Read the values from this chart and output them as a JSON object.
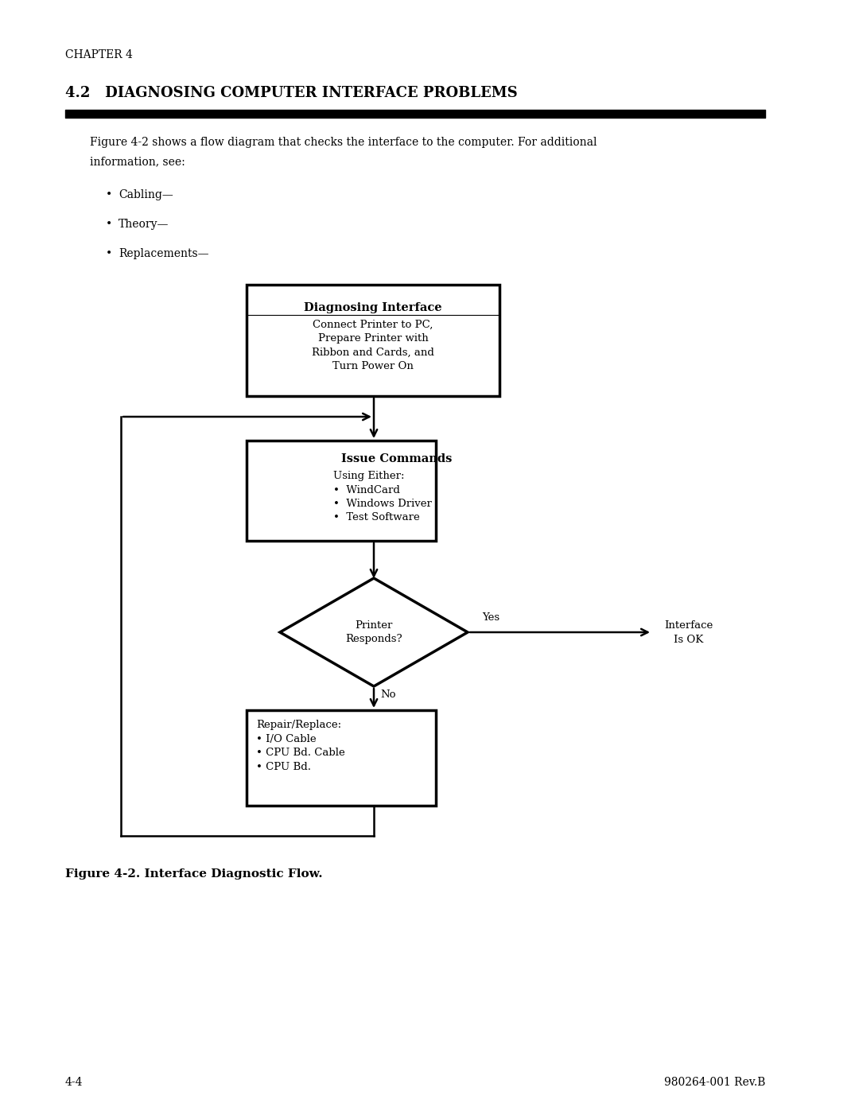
{
  "page_bg": "#ffffff",
  "chapter_text": "CHAPTER 4",
  "section_title": "4.2   DIAGNOSING COMPUTER INTERFACE PROBLEMS",
  "body_text_1": "Figure 4-2 shows a flow diagram that checks the interface to the computer. For additional",
  "body_text_2": "information, see:",
  "bullets": [
    "Cabling—",
    "Theory—",
    "Replacements—"
  ],
  "box1_title": "Diagnosing Interface",
  "box1_body": "Connect Printer to PC,\nPrepare Printer with\nRibbon and Cards, and\nTurn Power On",
  "box2_title": "Issue Commands",
  "box2_body": "Using Either:\n•  WindCard\n•  Windows Driver\n•  Test Software",
  "diamond_text": "Printer\nResponds?",
  "yes_label": "Yes",
  "no_label": "No",
  "right_label": "Interface\nIs OK",
  "box3_body": "Repair/Replace:\n• I/O Cable\n• CPU Bd. Cable\n• CPU Bd.",
  "figure_caption": "Figure 4-2. Interface Diagnostic Flow.",
  "page_number": "4-4",
  "doc_number": "980264-001 Rev.B",
  "font_family": "DejaVu Serif"
}
